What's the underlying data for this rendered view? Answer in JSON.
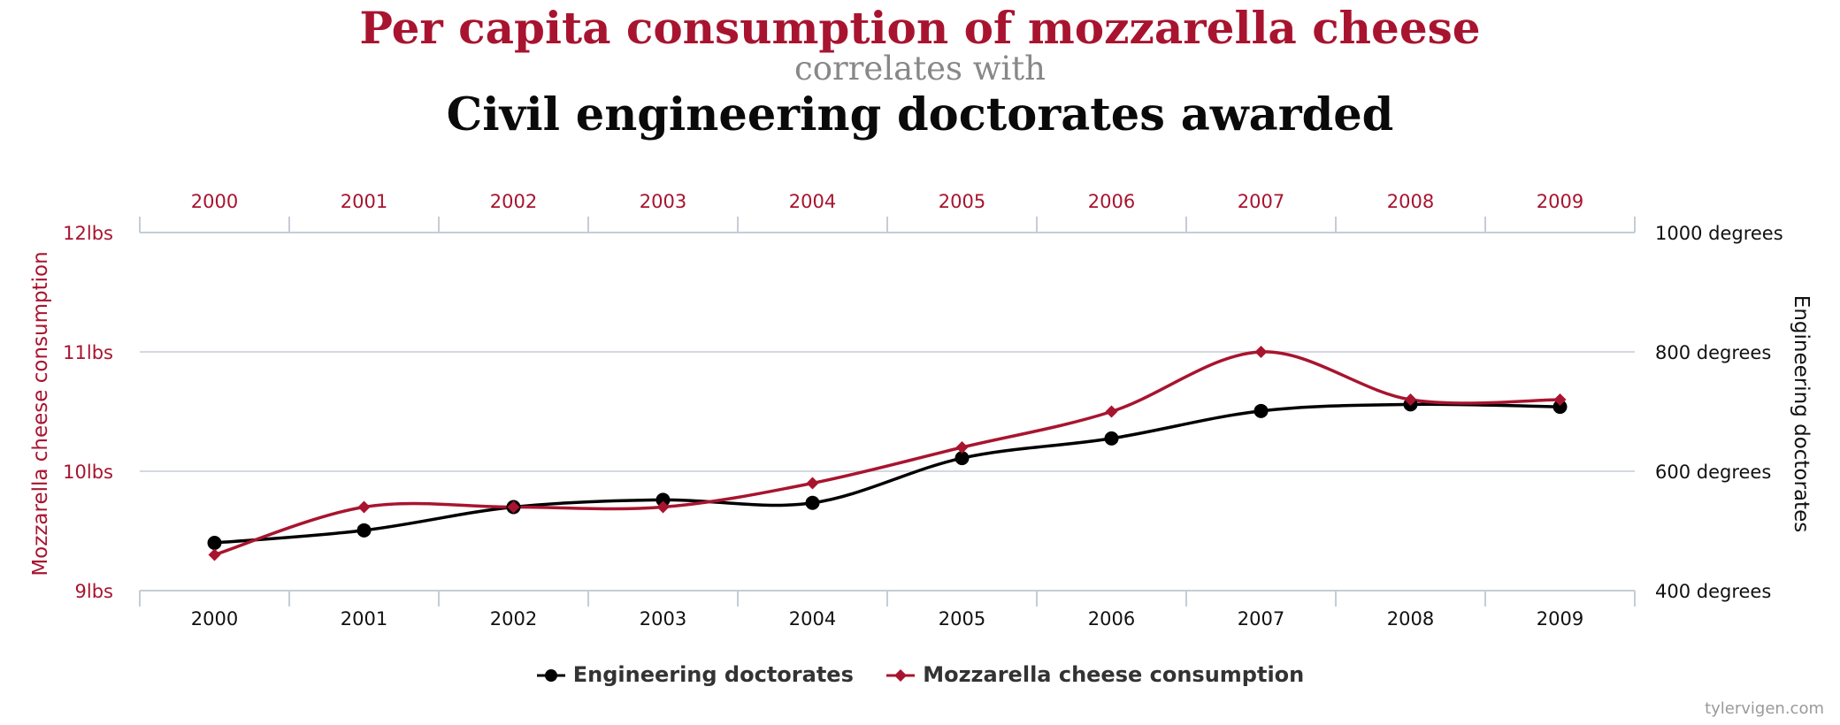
{
  "header": {
    "title": "Per capita consumption of mozzarella cheese",
    "connector": "correlates with",
    "subtitle": "Civil engineering doctorates awarded"
  },
  "credit": "tylervigen.com",
  "colors": {
    "mozzarella": "#a8142f",
    "engineering": "#000000",
    "grid": "#c5ccd6",
    "connector": "#888888"
  },
  "chart_data": {
    "type": "line",
    "x": [
      "2000",
      "2001",
      "2002",
      "2003",
      "2004",
      "2005",
      "2006",
      "2007",
      "2008",
      "2009"
    ],
    "grid": true,
    "legend_position": "bottom-center",
    "left_axis": {
      "label": "Mozzarella cheese consumption",
      "range": [
        9,
        12
      ],
      "ticks": [
        {
          "value": 12,
          "label": "12lbs"
        },
        {
          "value": 11,
          "label": "11lbs"
        },
        {
          "value": 10,
          "label": "10lbs"
        },
        {
          "value": 9,
          "label": "9lbs"
        }
      ]
    },
    "right_axis": {
      "label": "Engineering doctorates",
      "range": [
        400,
        1000
      ],
      "ticks": [
        {
          "value": 1000,
          "label": "1000 degrees"
        },
        {
          "value": 800,
          "label": "800 degrees"
        },
        {
          "value": 600,
          "label": "600 degrees"
        },
        {
          "value": 400,
          "label": "400 degrees"
        }
      ]
    },
    "series": [
      {
        "name": "Engineering doctorates",
        "axis": "right",
        "marker": "circle",
        "color": "#000000",
        "values": [
          480,
          501,
          540,
          552,
          547,
          622,
          655,
          701,
          712,
          708
        ]
      },
      {
        "name": "Mozzarella cheese consumption",
        "axis": "left",
        "marker": "diamond",
        "color": "#a8142f",
        "values": [
          9.3,
          9.7,
          9.7,
          9.7,
          9.9,
          10.2,
          10.5,
          11.0,
          10.6,
          10.6
        ]
      }
    ]
  }
}
